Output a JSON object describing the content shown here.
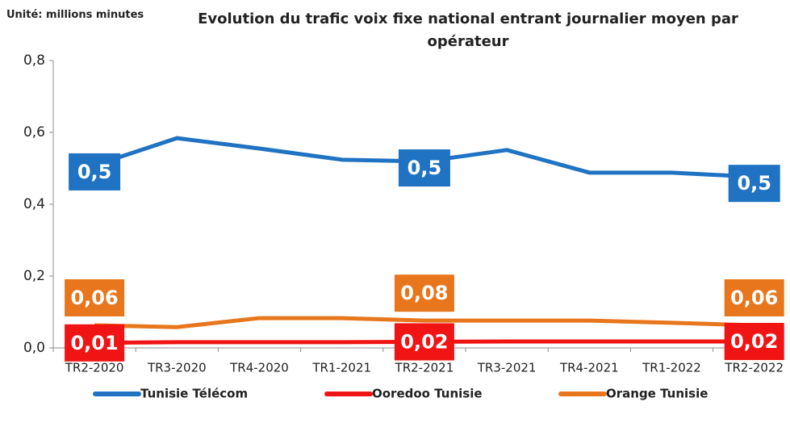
{
  "chart_data": {
    "type": "line",
    "unit_label": "Unité: millions minutes",
    "title": "Evolution du trafic voix fixe national entrant journalier moyen par opérateur",
    "categories": [
      "TR2-2020",
      "TR3-2020",
      "TR4-2020",
      "TR1-2021",
      "TR2-2021",
      "TR3-2021",
      "TR4-2021",
      "TR1-2022",
      "TR2-2022"
    ],
    "series": [
      {
        "name": "Tunisie Télécom",
        "color": "#1f73c2",
        "values": [
          0.508,
          0.584,
          0.555,
          0.524,
          0.519,
          0.551,
          0.488,
          0.488,
          0.476
        ],
        "value_labels": [
          "0,5",
          null,
          null,
          null,
          "0,5",
          null,
          null,
          null,
          "0,5"
        ]
      },
      {
        "name": "Ooredoo Tunisie",
        "color": "#f01414",
        "values": [
          0.014,
          0.016,
          0.016,
          0.016,
          0.017,
          0.018,
          0.018,
          0.018,
          0.018
        ],
        "value_labels": [
          "0,01",
          null,
          null,
          null,
          "0,02",
          null,
          null,
          null,
          "0,02"
        ]
      },
      {
        "name": "Orange Tunisie",
        "color": "#e8761c",
        "values": [
          0.063,
          0.058,
          0.083,
          0.083,
          0.076,
          0.076,
          0.076,
          0.07,
          0.063
        ],
        "value_labels": [
          "0,06",
          null,
          null,
          null,
          "0,08",
          null,
          null,
          null,
          "0,06"
        ]
      }
    ],
    "ylim": [
      0,
      0.8
    ],
    "yticks": [
      {
        "value": 0,
        "label": "0,0"
      },
      {
        "value": 0.2,
        "label": "0,2"
      },
      {
        "value": 0.4,
        "label": "0,4"
      },
      {
        "value": 0.6,
        "label": "0,6"
      },
      {
        "value": 0.8,
        "label": "0,8"
      }
    ],
    "grid": false,
    "legend": "bottom"
  }
}
